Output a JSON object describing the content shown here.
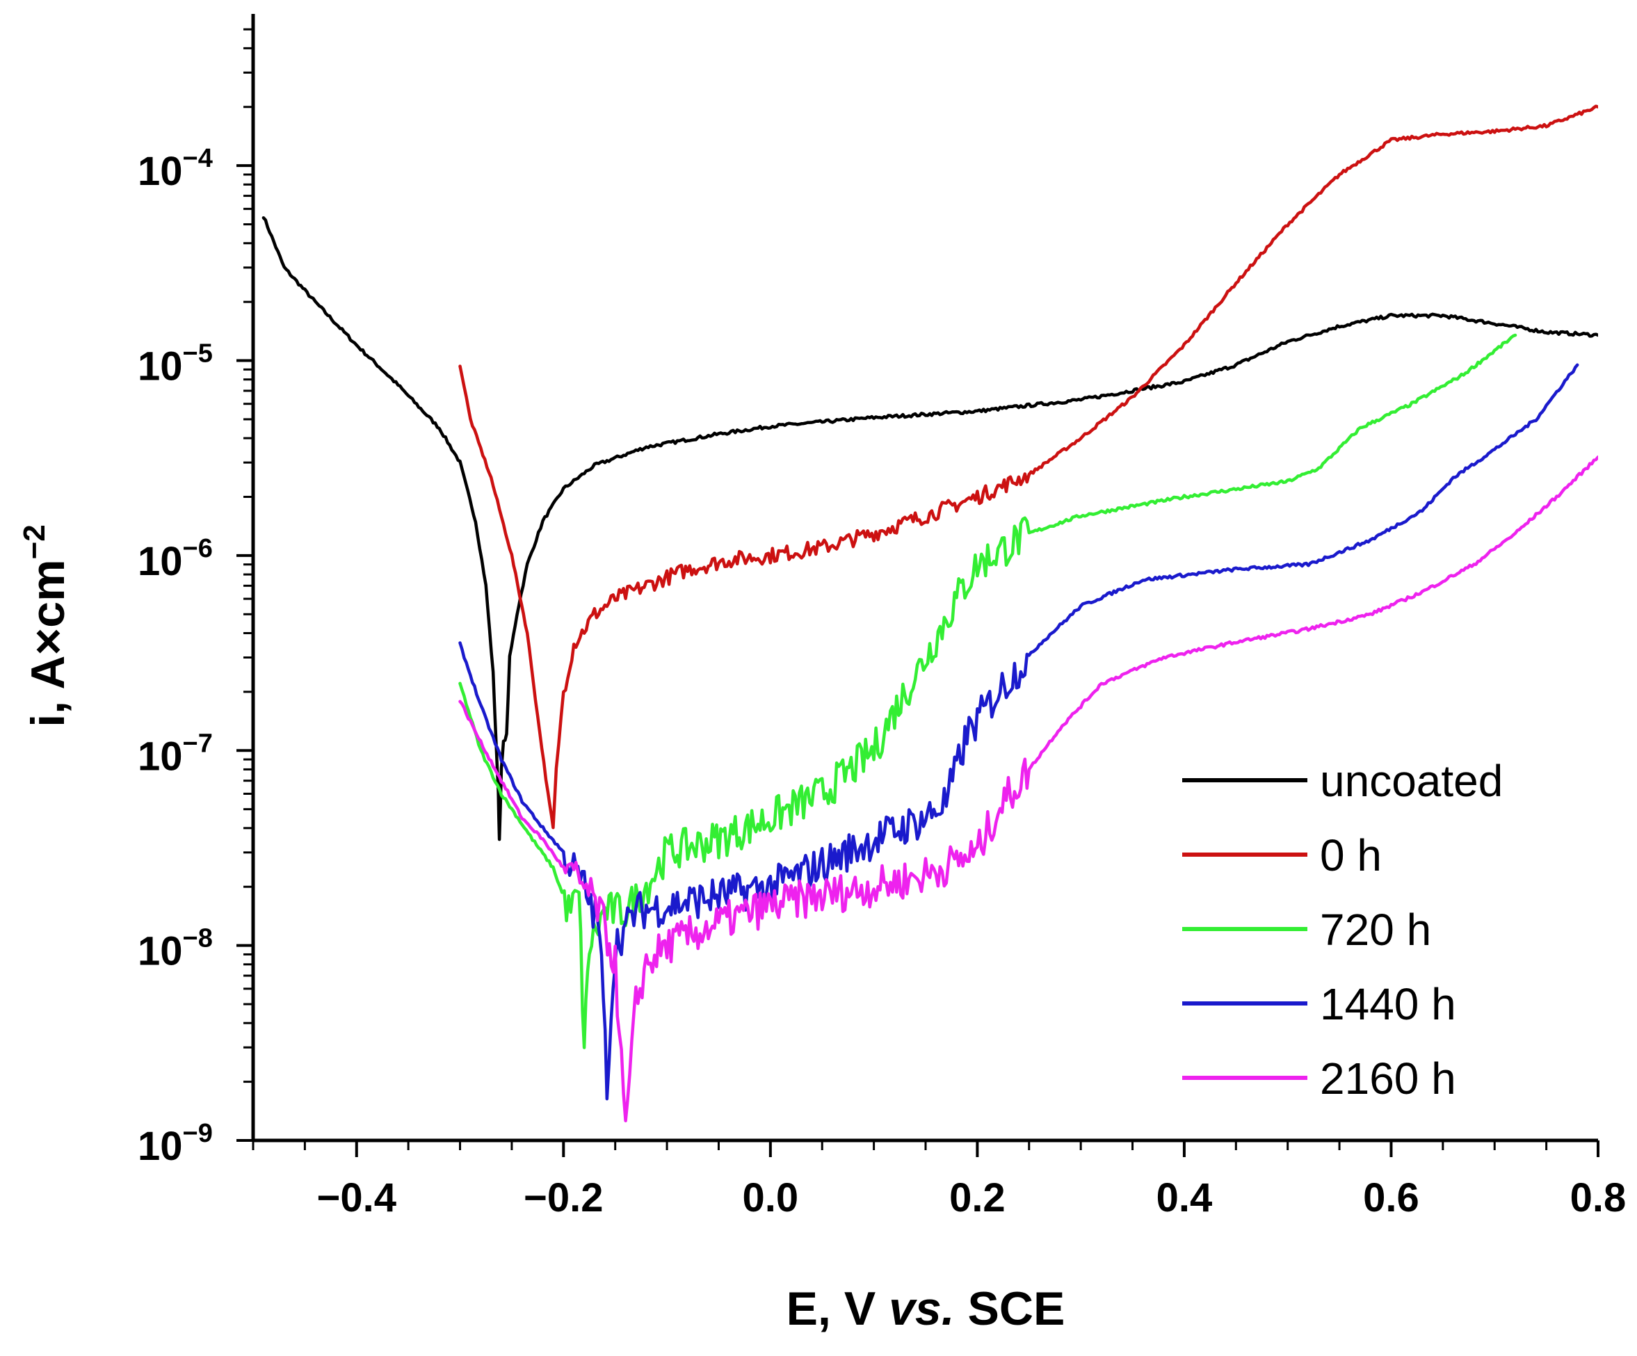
{
  "chart_data": {
    "type": "line",
    "y_scale": "log",
    "title": "",
    "xlabel": "E, V vs. SCE",
    "xlabel_prefix": "E, V ",
    "xlabel_italic": "vs.",
    "xlabel_suffix": " SCE",
    "ylabel": "i, A×cm⁻²",
    "ylabel_base": "i, A×cm",
    "ylabel_exponent": "−2",
    "xlim": [
      -0.5,
      0.8
    ],
    "ylim": [
      1e-09,
      0.0006
    ],
    "x_ticks": [
      -0.4,
      -0.2,
      0.0,
      0.2,
      0.4,
      0.6,
      0.8
    ],
    "x_tick_labels": [
      "−0.4",
      "−0.2",
      "0.0",
      "0.2",
      "0.4",
      "0.6",
      "0.8"
    ],
    "y_ticks": [
      1e-09,
      1e-08,
      1e-07,
      1e-06,
      1e-05,
      0.0001
    ],
    "y_tick_bases": [
      "10",
      "10",
      "10",
      "10",
      "10",
      "10"
    ],
    "y_tick_exponents": [
      "−9",
      "−8",
      "−7",
      "−6",
      "−5",
      "−4"
    ],
    "legend_position": "bottom-right",
    "grid": false,
    "series": [
      {
        "name": "uncoated",
        "color": "#000000",
        "points": [
          [
            -0.49,
            5.5e-05
          ],
          [
            -0.47,
            3e-05
          ],
          [
            -0.44,
            2e-05
          ],
          [
            -0.4,
            1.2e-05
          ],
          [
            -0.36,
            7.5e-06
          ],
          [
            -0.32,
            4.5e-06
          ],
          [
            -0.3,
            3e-06
          ],
          [
            -0.285,
            1.5e-06
          ],
          [
            -0.275,
            7e-07
          ],
          [
            -0.268,
            2.5e-07
          ],
          [
            -0.263,
            6e-08
          ],
          [
            -0.262,
            3.5e-08
          ],
          [
            -0.26,
            8e-08
          ],
          [
            -0.258,
            1.1e-07
          ],
          [
            -0.255,
            1.2e-07
          ],
          [
            -0.252,
            3e-07
          ],
          [
            -0.245,
            5e-07
          ],
          [
            -0.235,
            9e-07
          ],
          [
            -0.22,
            1.5e-06
          ],
          [
            -0.2,
            2.2e-06
          ],
          [
            -0.17,
            2.9e-06
          ],
          [
            -0.12,
            3.6e-06
          ],
          [
            -0.05,
            4.2e-06
          ],
          [
            0.0,
            4.6e-06
          ],
          [
            0.1,
            5.1e-06
          ],
          [
            0.2,
            5.5e-06
          ],
          [
            0.3,
            6.3e-06
          ],
          [
            0.4,
            7.8e-06
          ],
          [
            0.45,
            9.5e-06
          ],
          [
            0.5,
            1.25e-05
          ],
          [
            0.55,
            1.5e-05
          ],
          [
            0.6,
            1.7e-05
          ],
          [
            0.65,
            1.7e-05
          ],
          [
            0.7,
            1.55e-05
          ],
          [
            0.75,
            1.4e-05
          ],
          [
            0.8,
            1.35e-05
          ]
        ]
      },
      {
        "name": "0 h",
        "color": "#cc1111",
        "points": [
          [
            -0.3,
            9.5e-06
          ],
          [
            -0.29,
            5e-06
          ],
          [
            -0.27,
            2.5e-06
          ],
          [
            -0.25,
            1e-06
          ],
          [
            -0.235,
            4e-07
          ],
          [
            -0.225,
            1.5e-07
          ],
          [
            -0.215,
            6e-08
          ],
          [
            -0.21,
            4e-08
          ],
          [
            -0.207,
            8e-08
          ],
          [
            -0.2,
            2e-07
          ],
          [
            -0.19,
            3.5e-07
          ],
          [
            -0.17,
            5e-07
          ],
          [
            -0.15,
            6e-07
          ],
          [
            -0.12,
            7e-07
          ],
          [
            -0.08,
            8.5e-07
          ],
          [
            -0.04,
            9.5e-07
          ],
          [
            0.0,
            1e-06
          ],
          [
            0.05,
            1.1e-06
          ],
          [
            0.1,
            1.3e-06
          ],
          [
            0.15,
            1.6e-06
          ],
          [
            0.2,
            2e-06
          ],
          [
            0.25,
            2.6e-06
          ],
          [
            0.3,
            4e-06
          ],
          [
            0.35,
            6.5e-06
          ],
          [
            0.4,
            1.2e-05
          ],
          [
            0.45,
            2.5e-05
          ],
          [
            0.5,
            5e-05
          ],
          [
            0.55,
            9e-05
          ],
          [
            0.6,
            0.000135
          ],
          [
            0.65,
            0.000145
          ],
          [
            0.7,
            0.00015
          ],
          [
            0.75,
            0.00016
          ],
          [
            0.8,
            0.0002
          ]
        ]
      },
      {
        "name": "720 h",
        "color": "#33ee33",
        "points": [
          [
            -0.3,
            2.2e-07
          ],
          [
            -0.28,
            1e-07
          ],
          [
            -0.26,
            6e-08
          ],
          [
            -0.23,
            3.5e-08
          ],
          [
            -0.21,
            2.5e-08
          ],
          [
            -0.195,
            1.5e-08
          ],
          [
            -0.185,
            1.8e-08
          ],
          [
            -0.18,
            3e-09
          ],
          [
            -0.175,
            1e-08
          ],
          [
            -0.16,
            1.5e-08
          ],
          [
            -0.14,
            1.5e-08
          ],
          [
            -0.12,
            2e-08
          ],
          [
            -0.1,
            3e-08
          ],
          [
            -0.05,
            3.5e-08
          ],
          [
            0.0,
            4.5e-08
          ],
          [
            0.05,
            6e-08
          ],
          [
            0.1,
            1e-07
          ],
          [
            0.12,
            1.6e-07
          ],
          [
            0.15,
            3e-07
          ],
          [
            0.18,
            6e-07
          ],
          [
            0.2,
            9e-07
          ],
          [
            0.25,
            1.3e-06
          ],
          [
            0.3,
            1.6e-06
          ],
          [
            0.4,
            2e-06
          ],
          [
            0.5,
            2.4e-06
          ],
          [
            0.53,
            2.8e-06
          ],
          [
            0.57,
            4.5e-06
          ],
          [
            0.62,
            6e-06
          ],
          [
            0.67,
            8.5e-06
          ],
          [
            0.72,
            1.35e-05
          ]
        ]
      },
      {
        "name": "1440 h",
        "color": "#1a1acc",
        "points": [
          [
            -0.3,
            3.5e-07
          ],
          [
            -0.28,
            1.7e-07
          ],
          [
            -0.26,
            9e-08
          ],
          [
            -0.24,
            5.5e-08
          ],
          [
            -0.22,
            4e-08
          ],
          [
            -0.2,
            3e-08
          ],
          [
            -0.18,
            2e-08
          ],
          [
            -0.165,
            1.2e-08
          ],
          [
            -0.158,
            2e-09
          ],
          [
            -0.15,
            1e-08
          ],
          [
            -0.13,
            1.5e-08
          ],
          [
            -0.1,
            1.6e-08
          ],
          [
            -0.05,
            1.8e-08
          ],
          [
            0.0,
            2e-08
          ],
          [
            0.05,
            2.6e-08
          ],
          [
            0.1,
            3.5e-08
          ],
          [
            0.15,
            4.5e-08
          ],
          [
            0.17,
            5.5e-08
          ],
          [
            0.19,
            1.2e-07
          ],
          [
            0.22,
            2e-07
          ],
          [
            0.26,
            3.5e-07
          ],
          [
            0.3,
            5.5e-07
          ],
          [
            0.36,
            7.5e-07
          ],
          [
            0.45,
            8.5e-07
          ],
          [
            0.52,
            9e-07
          ],
          [
            0.58,
            1.2e-06
          ],
          [
            0.63,
            1.7e-06
          ],
          [
            0.66,
            2.5e-06
          ],
          [
            0.7,
            3.5e-06
          ],
          [
            0.74,
            5e-06
          ],
          [
            0.78,
            9.5e-06
          ]
        ]
      },
      {
        "name": "2160 h",
        "color": "#ee22ee",
        "points": [
          [
            -0.3,
            1.8e-07
          ],
          [
            -0.28,
            1.1e-07
          ],
          [
            -0.26,
            7e-08
          ],
          [
            -0.24,
            4.5e-08
          ],
          [
            -0.22,
            3.5e-08
          ],
          [
            -0.2,
            2.5e-08
          ],
          [
            -0.18,
            2e-08
          ],
          [
            -0.165,
            1.5e-08
          ],
          [
            -0.15,
            8e-09
          ],
          [
            -0.14,
            1.1e-09
          ],
          [
            -0.13,
            5e-09
          ],
          [
            -0.12,
            8e-09
          ],
          [
            -0.1,
            1e-08
          ],
          [
            -0.05,
            1.3e-08
          ],
          [
            0.0,
            1.6e-08
          ],
          [
            0.05,
            1.8e-08
          ],
          [
            0.1,
            2e-08
          ],
          [
            0.15,
            2.3e-08
          ],
          [
            0.2,
            3e-08
          ],
          [
            0.22,
            5e-08
          ],
          [
            0.25,
            8e-08
          ],
          [
            0.28,
            1.3e-07
          ],
          [
            0.32,
            2.2e-07
          ],
          [
            0.38,
            3e-07
          ],
          [
            0.45,
            3.6e-07
          ],
          [
            0.52,
            4.2e-07
          ],
          [
            0.58,
            5e-07
          ],
          [
            0.63,
            6.5e-07
          ],
          [
            0.68,
            9e-07
          ],
          [
            0.72,
            1.3e-06
          ],
          [
            0.76,
            2e-06
          ],
          [
            0.8,
            3.2e-06
          ]
        ]
      }
    ]
  }
}
